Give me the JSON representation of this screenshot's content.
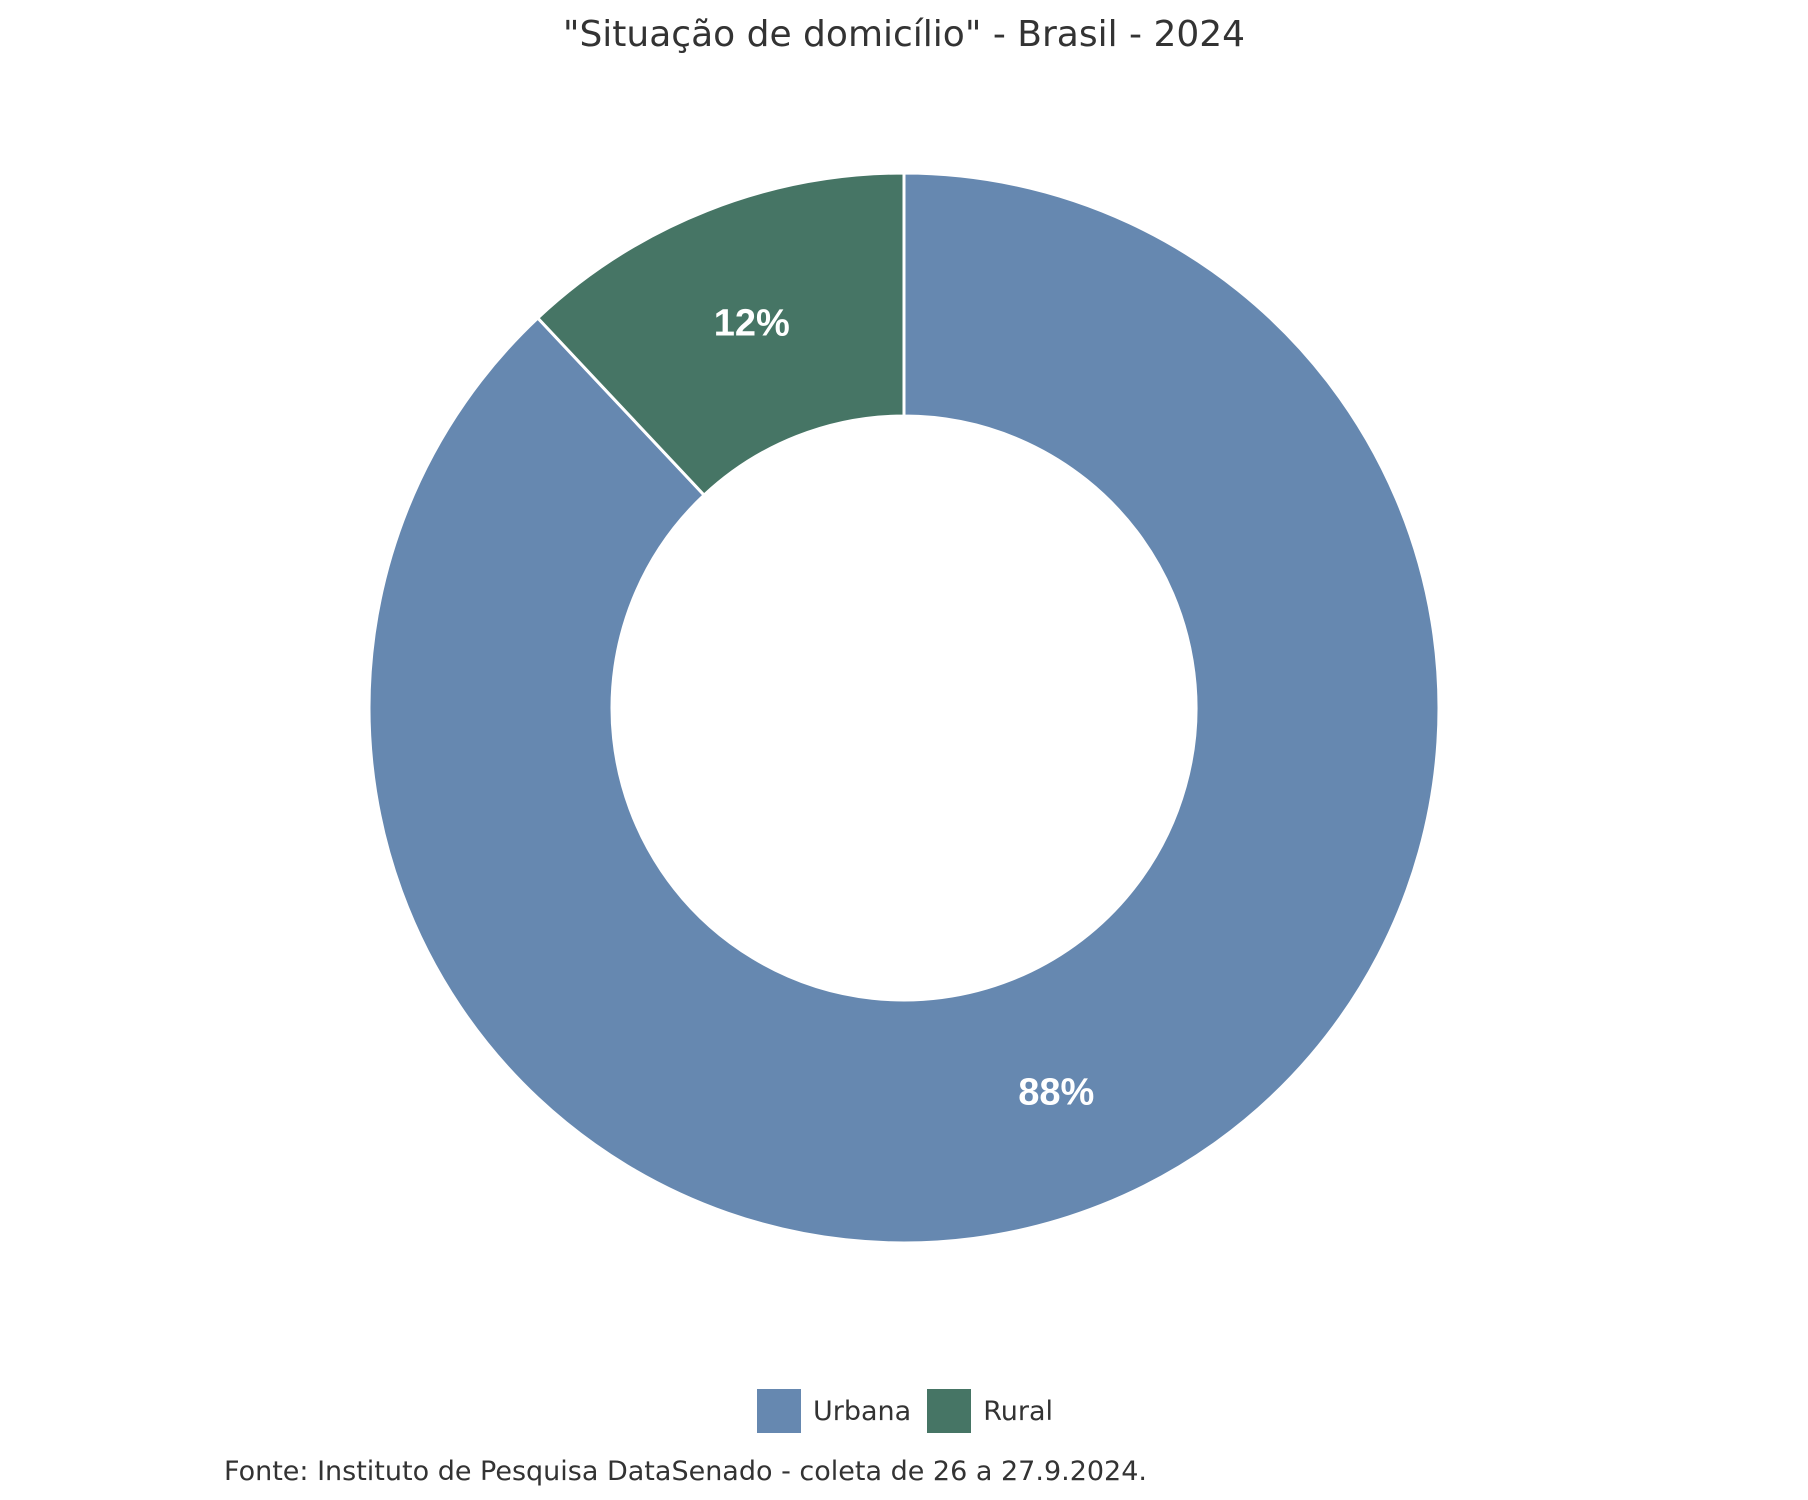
{
  "chart_data": {
    "type": "pie",
    "variant": "donut",
    "title": "\"Situação de domicílio\" - Brasil - 2024",
    "categories": [
      "Urbana",
      "Rural"
    ],
    "values": [
      88,
      12
    ],
    "data_labels": [
      "88%",
      "12%"
    ],
    "colors": [
      "#6688b0",
      "#467565"
    ],
    "legend_position": "bottom",
    "source": "Fonte: Instituto de Pesquisa DataSenado - coleta de 26 a 27.9.2024."
  }
}
